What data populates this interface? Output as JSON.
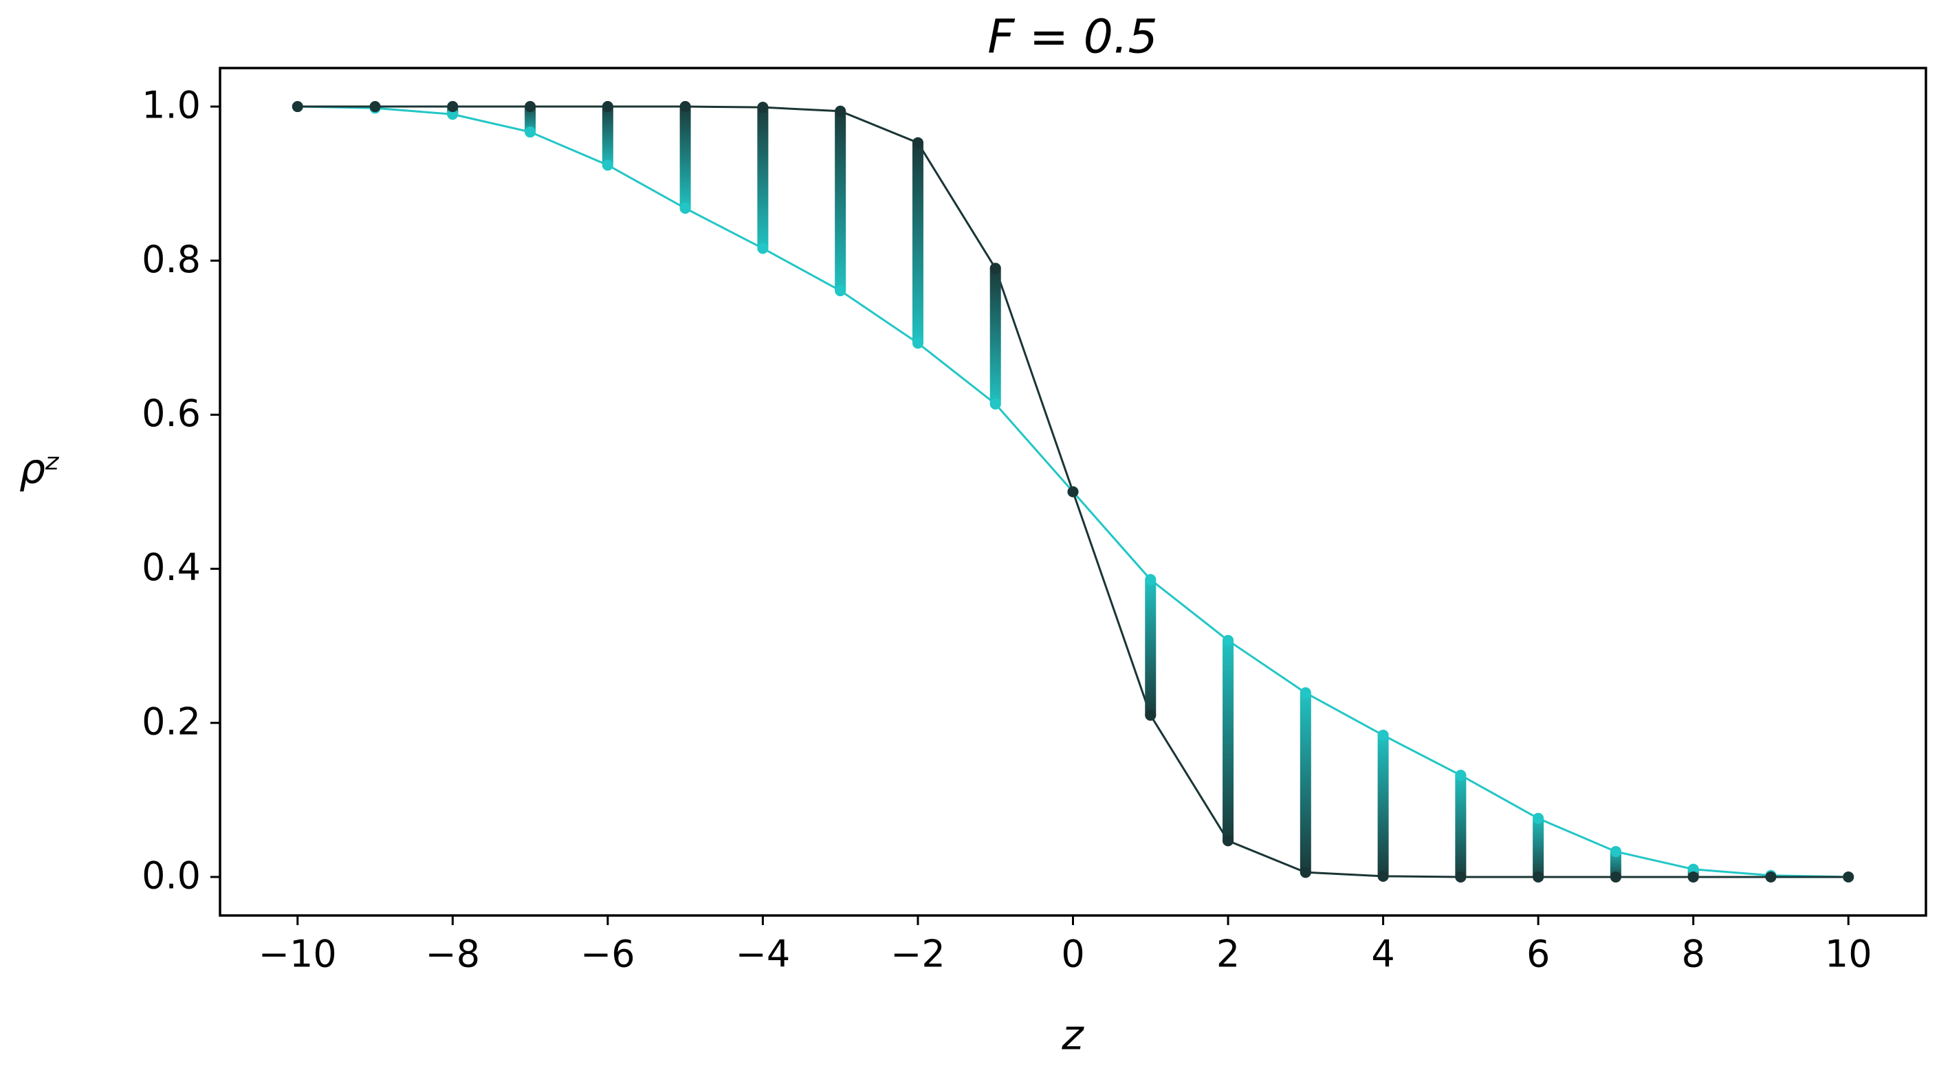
{
  "chart_data": {
    "type": "line",
    "title": "F = 0.5",
    "xlabel": "z",
    "ylabel": "ρᶻ",
    "x": [
      -10,
      -9,
      -8,
      -7,
      -6,
      -5,
      -4,
      -3,
      -2,
      -1,
      0,
      1,
      2,
      3,
      4,
      5,
      6,
      7,
      8,
      9,
      10
    ],
    "series": [
      {
        "color": "#22c6c6",
        "values": [
          1.0,
          0.998,
          0.99,
          0.967,
          0.924,
          0.868,
          0.816,
          0.761,
          0.693,
          0.614,
          0.5,
          0.386,
          0.307,
          0.239,
          0.184,
          0.132,
          0.076,
          0.033,
          0.01,
          0.002,
          0.0
        ]
      },
      {
        "color": "#1a3535",
        "values": [
          1.0,
          1.0,
          1.0,
          1.0,
          1.0,
          1.0,
          0.999,
          0.994,
          0.953,
          0.79,
          0.5,
          0.21,
          0.047,
          0.006,
          0.001,
          0.0,
          0.0,
          0.0,
          0.0,
          0.0,
          0.0
        ]
      }
    ],
    "xlim": [
      -11,
      11
    ],
    "ylim": [
      -0.05,
      1.05
    ],
    "xticks": [
      {
        "value": -10,
        "label": "−10"
      },
      {
        "value": -8,
        "label": "−8"
      },
      {
        "value": -6,
        "label": "−6"
      },
      {
        "value": -4,
        "label": "−4"
      },
      {
        "value": -2,
        "label": "−2"
      },
      0,
      2,
      4,
      6,
      8,
      10
    ],
    "yticks": [
      {
        "value": 0,
        "label": "0.0"
      },
      0.2,
      0.4,
      0.6,
      0.8,
      {
        "value": 1,
        "label": "1.0"
      }
    ],
    "grid": false
  }
}
